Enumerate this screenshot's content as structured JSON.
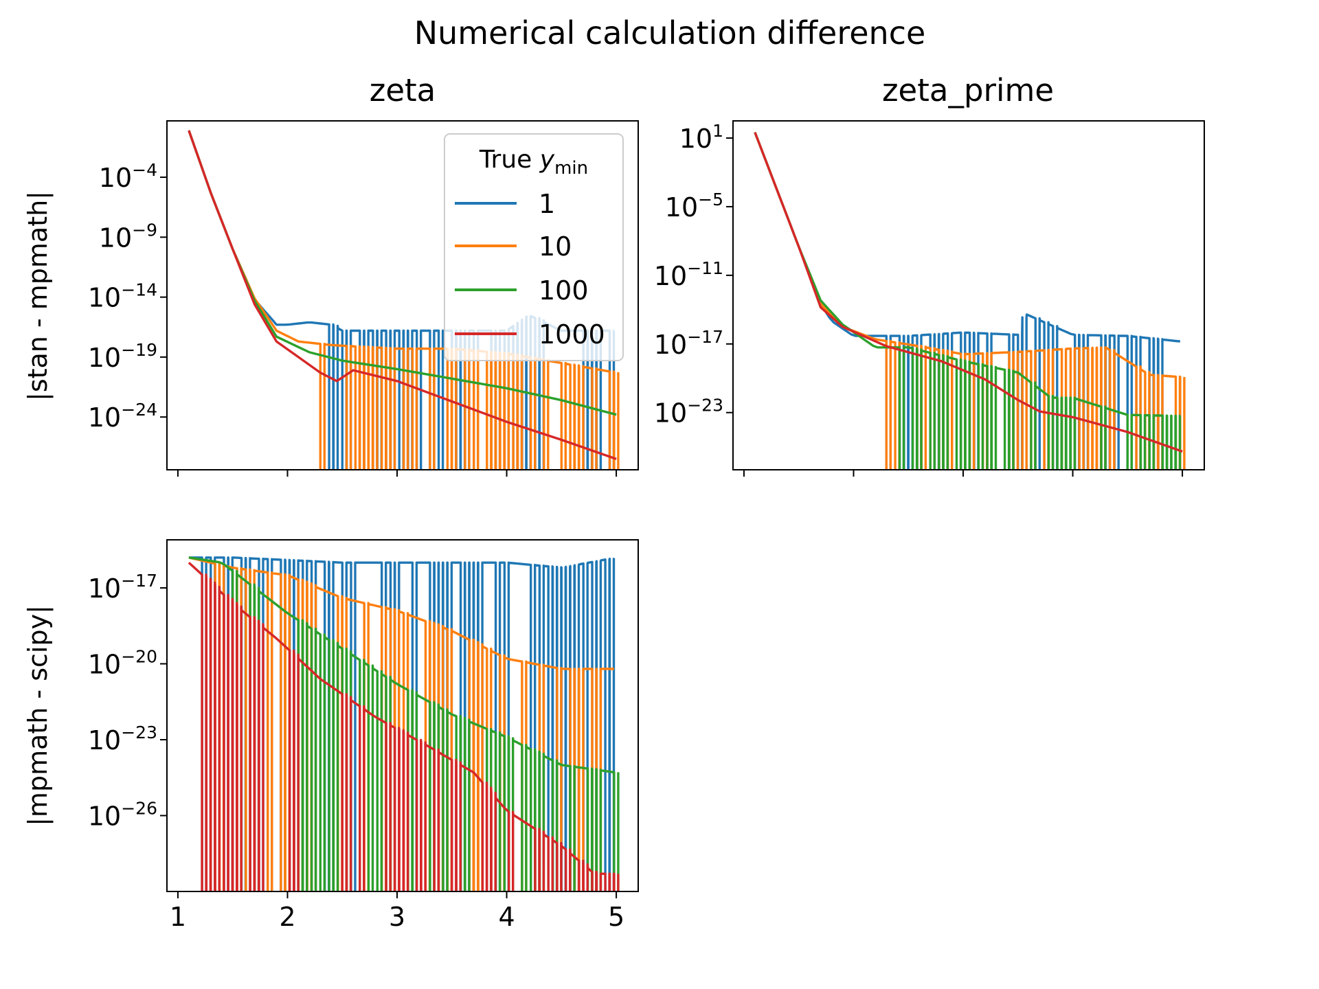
{
  "figure": {
    "suptitle": "Numerical calculation difference"
  },
  "panels": {
    "zeta": {
      "title": "zeta",
      "ylabel": "|stan - mpmath|",
      "yticks": [
        -4,
        -9,
        -14,
        -19,
        -24
      ]
    },
    "zeta_prime": {
      "title": "zeta_prime",
      "ylabel": "",
      "yticks": [
        1,
        -5,
        -11,
        -17,
        -23
      ]
    },
    "scipy": {
      "title": "",
      "ylabel": "|mpmath - scipy|",
      "yticks": [
        -17,
        -20,
        -23,
        -26
      ],
      "xticks": [
        "1",
        "2",
        "3",
        "4",
        "5"
      ]
    }
  },
  "legend": {
    "title_prefix": "True ",
    "title_var": "y",
    "title_sub": "min",
    "items": [
      {
        "label": "1",
        "color": "#1f77b4"
      },
      {
        "label": "10",
        "color": "#ff7f0e"
      },
      {
        "label": "100",
        "color": "#2ca02c"
      },
      {
        "label": "1000",
        "color": "#d62728"
      }
    ],
    "placement": "upper right of zeta panel"
  },
  "chart_data": [
    {
      "type": "line",
      "title": "zeta",
      "xlabel": "",
      "ylabel": "|stan - mpmath|",
      "yscale": "log",
      "xlim": [
        0.9,
        5.2
      ],
      "ylim_exp": [
        -28.4,
        0.7
      ],
      "series": [
        {
          "name": "1",
          "color": "#1f77b4",
          "points": [
            [
              1.1,
              -0.1
            ],
            [
              1.3,
              -5.3
            ],
            [
              1.5,
              -10.0
            ],
            [
              1.7,
              -14.2
            ],
            [
              1.9,
              -16.3
            ],
            [
              2.0,
              -16.3
            ],
            [
              2.2,
              -16.1
            ],
            [
              2.4,
              -16.3
            ],
            [
              2.5,
              -16.8
            ],
            [
              3.0,
              -16.8
            ],
            [
              3.5,
              -16.8
            ],
            [
              4.0,
              -16.8
            ],
            [
              4.2,
              -15.5
            ],
            [
              4.5,
              -16.8
            ],
            [
              5.0,
              -16.8
            ]
          ],
          "dropouts": true
        },
        {
          "name": "10",
          "color": "#ff7f0e",
          "points": [
            [
              1.1,
              -0.1
            ],
            [
              1.3,
              -5.3
            ],
            [
              1.5,
              -10.0
            ],
            [
              1.7,
              -14.1
            ],
            [
              1.9,
              -16.8
            ],
            [
              2.1,
              -17.7
            ],
            [
              2.4,
              -18.0
            ],
            [
              3.0,
              -18.3
            ],
            [
              3.5,
              -18.3
            ],
            [
              4.0,
              -18.7
            ],
            [
              4.5,
              -19.5
            ],
            [
              5.0,
              -20.3
            ]
          ],
          "dropouts": true
        },
        {
          "name": "100",
          "color": "#2ca02c",
          "points": [
            [
              1.1,
              -0.1
            ],
            [
              1.3,
              -5.3
            ],
            [
              1.5,
              -10.0
            ],
            [
              1.7,
              -14.3
            ],
            [
              1.9,
              -17.3
            ],
            [
              2.2,
              -18.6
            ],
            [
              2.5,
              -19.3
            ],
            [
              3.0,
              -20.0
            ],
            [
              3.5,
              -20.8
            ],
            [
              4.0,
              -21.6
            ],
            [
              4.5,
              -22.6
            ],
            [
              5.0,
              -23.8
            ]
          ],
          "dropouts": false
        },
        {
          "name": "1000",
          "color": "#d62728",
          "points": [
            [
              1.1,
              -0.1
            ],
            [
              1.3,
              -5.3
            ],
            [
              1.5,
              -10.0
            ],
            [
              1.7,
              -14.6
            ],
            [
              1.9,
              -17.7
            ],
            [
              2.1,
              -19.0
            ],
            [
              2.3,
              -20.3
            ],
            [
              2.45,
              -21.0
            ],
            [
              2.6,
              -20.1
            ],
            [
              3.0,
              -21.0
            ],
            [
              3.5,
              -22.7
            ],
            [
              4.0,
              -24.4
            ],
            [
              4.5,
              -25.9
            ],
            [
              5.0,
              -27.5
            ]
          ],
          "dropouts": false
        }
      ]
    },
    {
      "type": "line",
      "title": "zeta_prime",
      "xlabel": "",
      "ylabel": "",
      "yscale": "log",
      "xlim": [
        0.9,
        5.2
      ],
      "ylim_exp": [
        -28.0,
        2.5
      ],
      "series": [
        {
          "name": "1",
          "color": "#1f77b4",
          "points": [
            [
              1.1,
              1.5
            ],
            [
              1.3,
              -3.5
            ],
            [
              1.5,
              -8.5
            ],
            [
              1.7,
              -13.5
            ],
            [
              1.8,
              -15.0
            ],
            [
              2.0,
              -16.3
            ],
            [
              2.5,
              -16.3
            ],
            [
              3.0,
              -16.0
            ],
            [
              3.5,
              -16.2
            ],
            [
              3.55,
              -14.3
            ],
            [
              4.0,
              -16.2
            ],
            [
              4.5,
              -16.3
            ],
            [
              5.0,
              -16.8
            ]
          ],
          "dropouts": true
        },
        {
          "name": "10",
          "color": "#ff7f0e",
          "points": [
            [
              1.1,
              1.5
            ],
            [
              1.3,
              -3.5
            ],
            [
              1.5,
              -8.5
            ],
            [
              1.7,
              -13.5
            ],
            [
              1.9,
              -15.5
            ],
            [
              2.2,
              -16.6
            ],
            [
              2.6,
              -17.2
            ],
            [
              3.0,
              -17.9
            ],
            [
              3.5,
              -17.7
            ],
            [
              4.0,
              -17.4
            ],
            [
              4.3,
              -17.3
            ],
            [
              4.7,
              -19.7
            ],
            [
              5.0,
              -19.9
            ]
          ],
          "dropouts": true
        },
        {
          "name": "100",
          "color": "#2ca02c",
          "points": [
            [
              1.1,
              1.5
            ],
            [
              1.3,
              -3.5
            ],
            [
              1.5,
              -8.5
            ],
            [
              1.7,
              -13.2
            ],
            [
              1.9,
              -15.3
            ],
            [
              2.2,
              -17.3
            ],
            [
              2.5,
              -17.3
            ],
            [
              3.0,
              -18.5
            ],
            [
              3.5,
              -19.5
            ],
            [
              3.8,
              -21.7
            ],
            [
              4.0,
              -21.7
            ],
            [
              4.5,
              -23.2
            ],
            [
              5.0,
              -23.3
            ]
          ],
          "dropouts": true
        },
        {
          "name": "1000",
          "color": "#d62728",
          "points": [
            [
              1.1,
              1.5
            ],
            [
              1.3,
              -3.5
            ],
            [
              1.5,
              -8.5
            ],
            [
              1.7,
              -13.8
            ],
            [
              1.9,
              -15.5
            ],
            [
              2.3,
              -17.2
            ],
            [
              2.8,
              -18.5
            ],
            [
              3.2,
              -20.1
            ],
            [
              3.5,
              -21.9
            ],
            [
              3.7,
              -22.9
            ],
            [
              4.0,
              -23.4
            ],
            [
              4.5,
              -24.7
            ],
            [
              5.0,
              -26.4
            ]
          ],
          "dropouts": false
        }
      ]
    },
    {
      "type": "line",
      "title": "",
      "xlabel": "",
      "ylabel": "|mpmath - scipy|",
      "yscale": "log",
      "xlim": [
        0.9,
        5.2
      ],
      "ylim_exp": [
        -29.0,
        -15.1
      ],
      "xticks": [
        1,
        2,
        3,
        4,
        5
      ],
      "series": [
        {
          "name": "1",
          "color": "#1f77b4",
          "points": [
            [
              1.1,
              -15.8
            ],
            [
              1.5,
              -15.8
            ],
            [
              2.0,
              -15.9
            ],
            [
              2.5,
              -16.0
            ],
            [
              3.0,
              -16.0
            ],
            [
              3.5,
              -16.0
            ],
            [
              4.0,
              -16.0
            ],
            [
              4.5,
              -16.2
            ],
            [
              5.0,
              -15.8
            ]
          ],
          "dropouts": true
        },
        {
          "name": "10",
          "color": "#ff7f0e",
          "points": [
            [
              1.1,
              -15.8
            ],
            [
              1.5,
              -16.2
            ],
            [
              2.0,
              -16.5
            ],
            [
              2.5,
              -17.4
            ],
            [
              3.0,
              -17.9
            ],
            [
              3.5,
              -18.7
            ],
            [
              4.0,
              -19.8
            ],
            [
              4.5,
              -20.2
            ],
            [
              5.0,
              -20.2
            ]
          ],
          "dropouts": true
        },
        {
          "name": "100",
          "color": "#2ca02c",
          "points": [
            [
              1.1,
              -15.8
            ],
            [
              1.4,
              -16.0
            ],
            [
              1.7,
              -17.0
            ],
            [
              2.0,
              -18.0
            ],
            [
              2.5,
              -19.4
            ],
            [
              3.0,
              -20.8
            ],
            [
              3.5,
              -22.0
            ],
            [
              4.0,
              -22.9
            ],
            [
              4.5,
              -24.0
            ],
            [
              5.0,
              -24.3
            ]
          ],
          "dropouts": true
        },
        {
          "name": "1000",
          "color": "#d62728",
          "points": [
            [
              1.1,
              -16.0
            ],
            [
              1.5,
              -17.6
            ],
            [
              1.9,
              -19.0
            ],
            [
              2.3,
              -20.6
            ],
            [
              2.8,
              -22.1
            ],
            [
              3.3,
              -23.3
            ],
            [
              3.7,
              -24.3
            ],
            [
              4.0,
              -25.8
            ],
            [
              4.5,
              -27.2
            ],
            [
              4.8,
              -28.3
            ],
            [
              5.0,
              -28.3
            ]
          ],
          "dropouts": true
        }
      ]
    }
  ]
}
